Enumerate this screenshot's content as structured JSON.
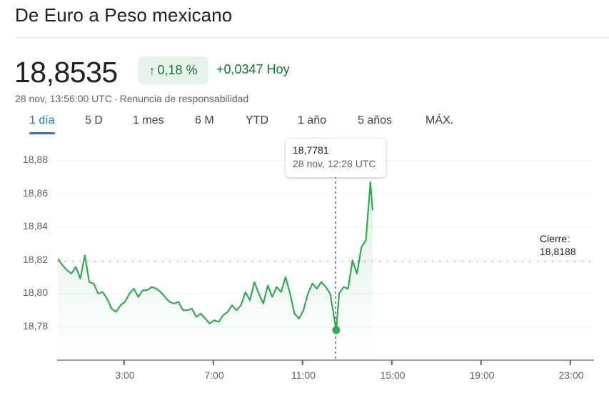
{
  "header": {
    "title": "De Euro a Peso mexicano"
  },
  "quote": {
    "price": "18,8535",
    "change_pct": "0,18 %",
    "change_arrow": "arrow-up-icon",
    "change_abs": "+0,0347",
    "change_period": "Hoy",
    "timestamp": "28 nov, 13:56:00 UTC",
    "separator": "·",
    "disclaimer_link": "Renuncia de responsabilidad",
    "positive_color": "#137333",
    "positive_bg": "#e6f4ea"
  },
  "tabs": [
    {
      "label": "1 día",
      "active": true
    },
    {
      "label": "5 D",
      "active": false
    },
    {
      "label": "1 mes",
      "active": false
    },
    {
      "label": "6 M",
      "active": false
    },
    {
      "label": "YTD",
      "active": false
    },
    {
      "label": "1 año",
      "active": false
    },
    {
      "label": "5 años",
      "active": false
    },
    {
      "label": "MÁX.",
      "active": false
    }
  ],
  "tooltip": {
    "value": "18,7781",
    "time": "28 nov, 12:28 UTC"
  },
  "close": {
    "label": "Cierre:",
    "value": "18,8188"
  },
  "chart_data": {
    "type": "line",
    "title": "De Euro a Peso mexicano — 1 día",
    "xlabel": "",
    "ylabel": "",
    "line_color": "#34a853",
    "fill": "gradient-area",
    "grid": true,
    "y_ticks": [
      "18,88",
      "18,86",
      "18,84",
      "18,82",
      "18,80",
      "18,78"
    ],
    "x_ticks": [
      "3:00",
      "7:00",
      "11:00",
      "15:00",
      "19:00",
      "23:00"
    ],
    "ylim": [
      18.76,
      18.89
    ],
    "xlim_hours": [
      0,
      24
    ],
    "previous_close": 18.8188,
    "highlight_point": {
      "time": "12:28",
      "value": 18.7781
    },
    "x_hours": [
      0.0,
      0.2,
      0.4,
      0.6,
      0.8,
      1.0,
      1.2,
      1.4,
      1.6,
      1.8,
      2.0,
      2.2,
      2.4,
      2.6,
      2.8,
      3.0,
      3.2,
      3.4,
      3.6,
      3.8,
      4.0,
      4.2,
      4.4,
      4.6,
      4.8,
      5.0,
      5.2,
      5.4,
      5.6,
      5.8,
      6.0,
      6.2,
      6.4,
      6.6,
      6.8,
      7.0,
      7.2,
      7.4,
      7.6,
      7.8,
      8.0,
      8.2,
      8.4,
      8.6,
      8.8,
      9.0,
      9.2,
      9.4,
      9.6,
      9.8,
      10.0,
      10.2,
      10.4,
      10.6,
      10.8,
      11.0,
      11.2,
      11.4,
      11.6,
      11.8,
      12.0,
      12.2,
      12.47,
      12.6,
      12.8,
      13.0,
      13.2,
      13.4,
      13.6,
      13.8,
      14.0,
      14.1
    ],
    "values": [
      18.821,
      18.817,
      18.814,
      18.812,
      18.816,
      18.809,
      18.823,
      18.807,
      18.806,
      18.8,
      18.801,
      18.797,
      18.791,
      18.789,
      18.793,
      18.795,
      18.8,
      18.803,
      18.798,
      18.802,
      18.802,
      18.804,
      18.803,
      18.801,
      18.798,
      18.795,
      18.794,
      18.795,
      18.79,
      18.79,
      18.791,
      18.786,
      18.788,
      18.785,
      18.782,
      18.784,
      18.783,
      18.787,
      18.789,
      18.793,
      18.79,
      18.793,
      18.801,
      18.796,
      18.807,
      18.8,
      18.794,
      18.805,
      18.798,
      18.804,
      18.801,
      18.81,
      18.8,
      18.788,
      18.785,
      18.79,
      18.8,
      18.806,
      18.803,
      18.807,
      18.804,
      18.8,
      18.778,
      18.8,
      18.804,
      18.803,
      18.82,
      18.812,
      18.828,
      18.832,
      18.867,
      18.85
    ]
  }
}
